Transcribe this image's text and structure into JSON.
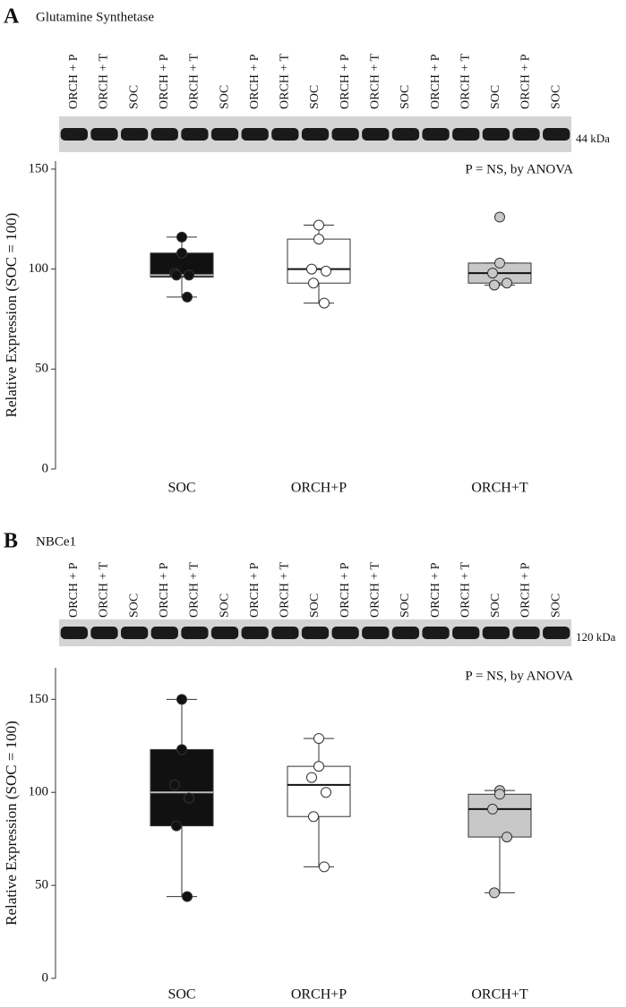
{
  "chart_data": [
    {
      "type": "box",
      "panel": "A",
      "title": "Glutamine Synthetase",
      "lanes": [
        "ORCH + P",
        "ORCH + T",
        "SOC",
        "ORCH + P",
        "ORCH + T",
        "SOC",
        "ORCH + P",
        "ORCH + T",
        "SOC",
        "ORCH + P",
        "ORCH + T",
        "SOC",
        "ORCH + P",
        "ORCH + T",
        "SOC",
        "ORCH + P",
        "SOC"
      ],
      "band_label": "44 kDa",
      "annotation": "P = NS, by ANOVA",
      "ylabel": "Relative Expression (SOC = 100)",
      "ylim": [
        0,
        154
      ],
      "yticks": [
        0,
        50,
        100,
        150
      ],
      "series": [
        {
          "name": "SOC",
          "color": "#111111",
          "median_color": "#bbbbbb",
          "whisker_low": 86,
          "q1": 96,
          "median": 97,
          "q3": 108,
          "whisker_high": 116,
          "points": [
            116,
            108,
            98,
            97,
            97,
            86
          ]
        },
        {
          "name": "ORCH+P",
          "color": "#ffffff",
          "median_color": "#111111",
          "whisker_low": 83,
          "q1": 93,
          "median": 100,
          "q3": 115,
          "whisker_high": 122,
          "points": [
            122,
            115,
            100,
            99,
            93,
            83
          ]
        },
        {
          "name": "ORCH+T",
          "color": "#c8c8c8",
          "median_color": "#111111",
          "whisker_low": 92,
          "q1": 93,
          "median": 98,
          "q3": 103,
          "whisker_high": 103,
          "points": [
            126,
            103,
            98,
            93,
            92
          ]
        }
      ]
    },
    {
      "type": "box",
      "panel": "B",
      "title": "NBCe1",
      "lanes": [
        "ORCH + P",
        "ORCH + T",
        "SOC",
        "ORCH + P",
        "ORCH + T",
        "SOC",
        "ORCH + P",
        "ORCH + T",
        "SOC",
        "ORCH + P",
        "ORCH + T",
        "SOC",
        "ORCH + P",
        "ORCH + T",
        "SOC",
        "ORCH + P",
        "SOC"
      ],
      "band_label": "120 kDa",
      "annotation": "P = NS, by ANOVA",
      "ylabel": "Relative Expression (SOC = 100)",
      "ylim": [
        0,
        167
      ],
      "yticks": [
        0,
        50,
        100,
        150
      ],
      "series": [
        {
          "name": "SOC",
          "color": "#111111",
          "median_color": "#bbbbbb",
          "whisker_low": 44,
          "q1": 82,
          "median": 100,
          "q3": 123,
          "whisker_high": 150,
          "points": [
            150,
            123,
            104,
            97,
            82,
            44
          ]
        },
        {
          "name": "ORCH+P",
          "color": "#ffffff",
          "median_color": "#111111",
          "whisker_low": 60,
          "q1": 87,
          "median": 104,
          "q3": 114,
          "whisker_high": 129,
          "points": [
            129,
            114,
            108,
            100,
            87,
            60
          ]
        },
        {
          "name": "ORCH+T",
          "color": "#c8c8c8",
          "median_color": "#111111",
          "whisker_low": 46,
          "q1": 76,
          "median": 91,
          "q3": 99,
          "whisker_high": 101,
          "points": [
            101,
            99,
            91,
            76,
            46
          ]
        }
      ]
    }
  ]
}
